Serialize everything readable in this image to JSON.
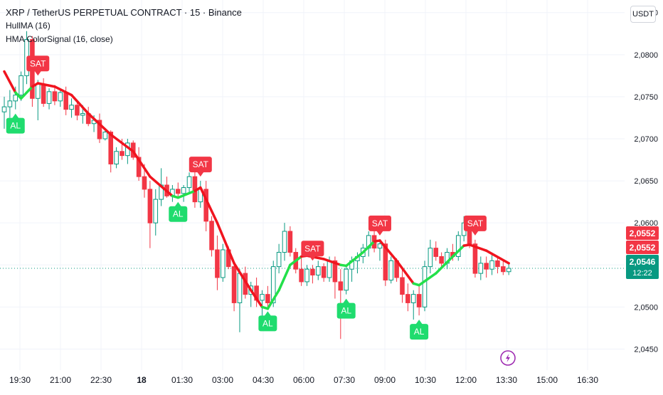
{
  "legend": {
    "title": "XRP / TetherUS PERPETUAL CONTRACT · 15 · Binance",
    "indicator1": "HullMA (16)",
    "indicator2": "HMA ColorSignal (16, close)"
  },
  "currency_button": "USDT",
  "time_labels": [
    {
      "label": "19:30",
      "bold": false
    },
    {
      "label": "21:00",
      "bold": false
    },
    {
      "label": "22:30",
      "bold": false
    },
    {
      "label": "18",
      "bold": true
    },
    {
      "label": "01:30",
      "bold": false
    },
    {
      "label": "03:00",
      "bold": false
    },
    {
      "label": "04:30",
      "bold": false
    },
    {
      "label": "06:00",
      "bold": false
    },
    {
      "label": "07:30",
      "bold": false
    },
    {
      "label": "09:00",
      "bold": false
    },
    {
      "label": "10:30",
      "bold": false
    },
    {
      "label": "12:00",
      "bold": false
    },
    {
      "label": "13:30",
      "bold": false
    },
    {
      "label": "15:00",
      "bold": false
    },
    {
      "label": "16:30",
      "bold": false
    }
  ],
  "chart_data": {
    "type": "candlestick",
    "title": "XRP / TetherUS PERPETUAL CONTRACT · 15 · Binance",
    "x_axis": "time (15-minute bars)",
    "ylim": [
      2.0425,
      2.0865
    ],
    "y_ticks": [
      "2,0450",
      "2,0500",
      "2,0550",
      "2,0600",
      "2,0650",
      "2,0700",
      "2,0750",
      "2,0800",
      "2,0850"
    ],
    "y_tick_values": [
      2.045,
      2.05,
      2.055,
      2.06,
      2.065,
      2.07,
      2.075,
      2.08,
      2.085
    ],
    "candles": [
      {
        "o": 2.0732,
        "h": 2.075,
        "l": 2.0712,
        "c": 2.0738
      },
      {
        "o": 2.0738,
        "h": 2.0758,
        "l": 2.0725,
        "c": 2.0745
      },
      {
        "o": 2.0745,
        "h": 2.0762,
        "l": 2.0735,
        "c": 2.0752
      },
      {
        "o": 2.0752,
        "h": 2.078,
        "l": 2.0745,
        "c": 2.0775
      },
      {
        "o": 2.0775,
        "h": 2.0828,
        "l": 2.0765,
        "c": 2.0818
      },
      {
        "o": 2.0818,
        "h": 2.0822,
        "l": 2.0738,
        "c": 2.0748
      },
      {
        "o": 2.0748,
        "h": 2.077,
        "l": 2.0722,
        "c": 2.0765
      },
      {
        "o": 2.0765,
        "h": 2.0772,
        "l": 2.0738,
        "c": 2.0742
      },
      {
        "o": 2.0742,
        "h": 2.076,
        "l": 2.0735,
        "c": 2.0756
      },
      {
        "o": 2.0756,
        "h": 2.0764,
        "l": 2.074,
        "c": 2.0745
      },
      {
        "o": 2.0745,
        "h": 2.076,
        "l": 2.0738,
        "c": 2.0755
      },
      {
        "o": 2.0755,
        "h": 2.0762,
        "l": 2.0728,
        "c": 2.0735
      },
      {
        "o": 2.0735,
        "h": 2.0748,
        "l": 2.0725,
        "c": 2.074
      },
      {
        "o": 2.074,
        "h": 2.0746,
        "l": 2.0722,
        "c": 2.0728
      },
      {
        "o": 2.0728,
        "h": 2.074,
        "l": 2.0718,
        "c": 2.073
      },
      {
        "o": 2.073,
        "h": 2.0738,
        "l": 2.0715,
        "c": 2.0718
      },
      {
        "o": 2.0718,
        "h": 2.0728,
        "l": 2.0708,
        "c": 2.0722
      },
      {
        "o": 2.0722,
        "h": 2.073,
        "l": 2.0695,
        "c": 2.07
      },
      {
        "o": 2.07,
        "h": 2.0712,
        "l": 2.0698,
        "c": 2.0708
      },
      {
        "o": 2.0708,
        "h": 2.071,
        "l": 2.066,
        "c": 2.067
      },
      {
        "o": 2.067,
        "h": 2.069,
        "l": 2.0665,
        "c": 2.0685
      },
      {
        "o": 2.0685,
        "h": 2.07,
        "l": 2.0675,
        "c": 2.068
      },
      {
        "o": 2.068,
        "h": 2.07,
        "l": 2.067,
        "c": 2.0695
      },
      {
        "o": 2.0695,
        "h": 2.0698,
        "l": 2.0675,
        "c": 2.0678
      },
      {
        "o": 2.0678,
        "h": 2.069,
        "l": 2.065,
        "c": 2.0655
      },
      {
        "o": 2.0655,
        "h": 2.067,
        "l": 2.063,
        "c": 2.064
      },
      {
        "o": 2.064,
        "h": 2.065,
        "l": 2.057,
        "c": 2.06
      },
      {
        "o": 2.06,
        "h": 2.064,
        "l": 2.0585,
        "c": 2.0628
      },
      {
        "o": 2.0628,
        "h": 2.0665,
        "l": 2.062,
        "c": 2.0645
      },
      {
        "o": 2.0645,
        "h": 2.0655,
        "l": 2.063,
        "c": 2.0632
      },
      {
        "o": 2.0632,
        "h": 2.0645,
        "l": 2.0625,
        "c": 2.064
      },
      {
        "o": 2.064,
        "h": 2.0648,
        "l": 2.063,
        "c": 2.0635
      },
      {
        "o": 2.0635,
        "h": 2.0645,
        "l": 2.0625,
        "c": 2.0642
      },
      {
        "o": 2.0642,
        "h": 2.066,
        "l": 2.0635,
        "c": 2.0655
      },
      {
        "o": 2.0655,
        "h": 2.0662,
        "l": 2.0618,
        "c": 2.0625
      },
      {
        "o": 2.0625,
        "h": 2.065,
        "l": 2.0618,
        "c": 2.064
      },
      {
        "o": 2.064,
        "h": 2.065,
        "l": 2.059,
        "c": 2.0602
      },
      {
        "o": 2.0602,
        "h": 2.0608,
        "l": 2.056,
        "c": 2.0568
      },
      {
        "o": 2.0568,
        "h": 2.0585,
        "l": 2.052,
        "c": 2.0535
      },
      {
        "o": 2.0535,
        "h": 2.0575,
        "l": 2.053,
        "c": 2.0568
      },
      {
        "o": 2.0568,
        "h": 2.0572,
        "l": 2.0545,
        "c": 2.0548
      },
      {
        "o": 2.0548,
        "h": 2.0552,
        "l": 2.0495,
        "c": 2.0505
      },
      {
        "o": 2.0505,
        "h": 2.0545,
        "l": 2.047,
        "c": 2.054
      },
      {
        "o": 2.054,
        "h": 2.0548,
        "l": 2.051,
        "c": 2.0515
      },
      {
        "o": 2.0515,
        "h": 2.053,
        "l": 2.05,
        "c": 2.0525
      },
      {
        "o": 2.0525,
        "h": 2.0535,
        "l": 2.05,
        "c": 2.0508
      },
      {
        "o": 2.0508,
        "h": 2.052,
        "l": 2.0485,
        "c": 2.0515
      },
      {
        "o": 2.0515,
        "h": 2.0525,
        "l": 2.05,
        "c": 2.0505
      },
      {
        "o": 2.0505,
        "h": 2.0555,
        "l": 2.05,
        "c": 2.0548
      },
      {
        "o": 2.0548,
        "h": 2.0575,
        "l": 2.054,
        "c": 2.0565
      },
      {
        "o": 2.0565,
        "h": 2.06,
        "l": 2.0555,
        "c": 2.059
      },
      {
        "o": 2.059,
        "h": 2.0596,
        "l": 2.056,
        "c": 2.0565
      },
      {
        "o": 2.0565,
        "h": 2.057,
        "l": 2.054,
        "c": 2.0545
      },
      {
        "o": 2.0545,
        "h": 2.056,
        "l": 2.0525,
        "c": 2.053
      },
      {
        "o": 2.053,
        "h": 2.055,
        "l": 2.0525,
        "c": 2.0545
      },
      {
        "o": 2.0545,
        "h": 2.055,
        "l": 2.0528,
        "c": 2.0538
      },
      {
        "o": 2.0538,
        "h": 2.0555,
        "l": 2.0532,
        "c": 2.0548
      },
      {
        "o": 2.0548,
        "h": 2.0552,
        "l": 2.053,
        "c": 2.0535
      },
      {
        "o": 2.0535,
        "h": 2.056,
        "l": 2.053,
        "c": 2.0555
      },
      {
        "o": 2.0555,
        "h": 2.056,
        "l": 2.051,
        "c": 2.053
      },
      {
        "o": 2.053,
        "h": 2.0545,
        "l": 2.0462,
        "c": 2.052
      },
      {
        "o": 2.052,
        "h": 2.055,
        "l": 2.0515,
        "c": 2.0545
      },
      {
        "o": 2.0545,
        "h": 2.056,
        "l": 2.053,
        "c": 2.0555
      },
      {
        "o": 2.0555,
        "h": 2.0565,
        "l": 2.054,
        "c": 2.056
      },
      {
        "o": 2.056,
        "h": 2.0575,
        "l": 2.0552,
        "c": 2.057
      },
      {
        "o": 2.057,
        "h": 2.059,
        "l": 2.056,
        "c": 2.0585
      },
      {
        "o": 2.0585,
        "h": 2.0592,
        "l": 2.0565,
        "c": 2.057
      },
      {
        "o": 2.057,
        "h": 2.058,
        "l": 2.0555,
        "c": 2.0575
      },
      {
        "o": 2.0575,
        "h": 2.058,
        "l": 2.0525,
        "c": 2.0532
      },
      {
        "o": 2.0532,
        "h": 2.056,
        "l": 2.0528,
        "c": 2.0555
      },
      {
        "o": 2.0555,
        "h": 2.0558,
        "l": 2.053,
        "c": 2.0535
      },
      {
        "o": 2.0535,
        "h": 2.0545,
        "l": 2.0505,
        "c": 2.0515
      },
      {
        "o": 2.0515,
        "h": 2.0528,
        "l": 2.0495,
        "c": 2.0505
      },
      {
        "o": 2.0505,
        "h": 2.052,
        "l": 2.0485,
        "c": 2.0515
      },
      {
        "o": 2.0515,
        "h": 2.0525,
        "l": 2.049,
        "c": 2.05
      },
      {
        "o": 2.05,
        "h": 2.0555,
        "l": 2.0495,
        "c": 2.0548
      },
      {
        "o": 2.0548,
        "h": 2.058,
        "l": 2.054,
        "c": 2.057
      },
      {
        "o": 2.057,
        "h": 2.0578,
        "l": 2.0555,
        "c": 2.056
      },
      {
        "o": 2.056,
        "h": 2.0565,
        "l": 2.0548,
        "c": 2.0552
      },
      {
        "o": 2.0552,
        "h": 2.057,
        "l": 2.0545,
        "c": 2.0565
      },
      {
        "o": 2.0565,
        "h": 2.0575,
        "l": 2.0555,
        "c": 2.056
      },
      {
        "o": 2.056,
        "h": 2.059,
        "l": 2.0555,
        "c": 2.0585
      },
      {
        "o": 2.0585,
        "h": 2.0608,
        "l": 2.0578,
        "c": 2.06
      },
      {
        "o": 2.06,
        "h": 2.0603,
        "l": 2.057,
        "c": 2.0575
      },
      {
        "o": 2.0575,
        "h": 2.058,
        "l": 2.0535,
        "c": 2.054
      },
      {
        "o": 2.054,
        "h": 2.056,
        "l": 2.0532,
        "c": 2.0552
      },
      {
        "o": 2.0552,
        "h": 2.056,
        "l": 2.0535,
        "c": 2.0545
      },
      {
        "o": 2.0545,
        "h": 2.0562,
        "l": 2.0538,
        "c": 2.0555
      },
      {
        "o": 2.0555,
        "h": 2.056,
        "l": 2.054,
        "c": 2.0548
      },
      {
        "o": 2.0548,
        "h": 2.0555,
        "l": 2.0538,
        "c": 2.0542
      },
      {
        "o": 2.0542,
        "h": 2.0552,
        "l": 2.0538,
        "c": 2.0546
      }
    ],
    "hma": [
      {
        "i": 0,
        "v": 2.078,
        "trend": "down"
      },
      {
        "i": 2,
        "v": 2.0755,
        "trend": "down"
      },
      {
        "i": 3,
        "v": 2.0748,
        "trend": "up"
      },
      {
        "i": 5,
        "v": 2.0762,
        "trend": "up"
      },
      {
        "i": 6,
        "v": 2.0766,
        "trend": "down"
      },
      {
        "i": 9,
        "v": 2.0762,
        "trend": "down"
      },
      {
        "i": 12,
        "v": 2.0752,
        "trend": "down"
      },
      {
        "i": 15,
        "v": 2.073,
        "trend": "down"
      },
      {
        "i": 19,
        "v": 2.0705,
        "trend": "down"
      },
      {
        "i": 23,
        "v": 2.0685,
        "trend": "down"
      },
      {
        "i": 26,
        "v": 2.0655,
        "trend": "down"
      },
      {
        "i": 30,
        "v": 2.0632,
        "trend": "down"
      },
      {
        "i": 31,
        "v": 2.063,
        "trend": "up"
      },
      {
        "i": 34,
        "v": 2.0638,
        "trend": "up"
      },
      {
        "i": 35,
        "v": 2.0642,
        "trend": "down"
      },
      {
        "i": 38,
        "v": 2.06,
        "trend": "down"
      },
      {
        "i": 41,
        "v": 2.0552,
        "trend": "down"
      },
      {
        "i": 44,
        "v": 2.052,
        "trend": "down"
      },
      {
        "i": 46,
        "v": 2.05,
        "trend": "down"
      },
      {
        "i": 47,
        "v": 2.0498,
        "trend": "up"
      },
      {
        "i": 49,
        "v": 2.052,
        "trend": "up"
      },
      {
        "i": 51,
        "v": 2.055,
        "trend": "up"
      },
      {
        "i": 53,
        "v": 2.056,
        "trend": "up"
      },
      {
        "i": 54,
        "v": 2.0561,
        "trend": "down"
      },
      {
        "i": 57,
        "v": 2.0557,
        "trend": "down"
      },
      {
        "i": 60,
        "v": 2.055,
        "trend": "down"
      },
      {
        "i": 61,
        "v": 2.0549,
        "trend": "up"
      },
      {
        "i": 64,
        "v": 2.0565,
        "trend": "up"
      },
      {
        "i": 66,
        "v": 2.0578,
        "trend": "up"
      },
      {
        "i": 67,
        "v": 2.0579,
        "trend": "down"
      },
      {
        "i": 70,
        "v": 2.0555,
        "trend": "down"
      },
      {
        "i": 73,
        "v": 2.0528,
        "trend": "down"
      },
      {
        "i": 74,
        "v": 2.0526,
        "trend": "up"
      },
      {
        "i": 77,
        "v": 2.054,
        "trend": "up"
      },
      {
        "i": 80,
        "v": 2.056,
        "trend": "up"
      },
      {
        "i": 82,
        "v": 2.0573,
        "trend": "up"
      },
      {
        "i": 83,
        "v": 2.0574,
        "trend": "down"
      },
      {
        "i": 86,
        "v": 2.0567,
        "trend": "down"
      },
      {
        "i": 90,
        "v": 2.0552,
        "trend": "down"
      }
    ],
    "signals": [
      {
        "i": 2,
        "type": "AL",
        "text": "AL"
      },
      {
        "i": 6,
        "type": "SAT",
        "text": "SAT"
      },
      {
        "i": 31,
        "type": "AL",
        "text": "AL"
      },
      {
        "i": 35,
        "type": "SAT",
        "text": "SAT"
      },
      {
        "i": 47,
        "type": "AL",
        "text": "AL"
      },
      {
        "i": 55,
        "type": "SAT",
        "text": "SAT"
      },
      {
        "i": 61,
        "type": "AL",
        "text": "AL"
      },
      {
        "i": 67,
        "type": "SAT",
        "text": "SAT"
      },
      {
        "i": 74,
        "type": "AL",
        "text": "AL"
      },
      {
        "i": 84,
        "type": "SAT",
        "text": "SAT"
      }
    ],
    "price_labels": [
      {
        "value": 2.0552,
        "text": "2,0552",
        "color": "#f23645"
      },
      {
        "value": 2.0552,
        "text": "2,0552",
        "color": "#f23645"
      },
      {
        "value": 2.0546,
        "text": "2,0546",
        "color": "#089981",
        "countdown": "12:22"
      }
    ],
    "last_price": 2.0546,
    "colors": {
      "up_candle": "#089981",
      "down_candle": "#f23645",
      "hma_up": "#22e04a",
      "hma_down": "#f0141e",
      "buy_tag": "#1fdc6e",
      "sell_tag": "#f23645"
    }
  }
}
